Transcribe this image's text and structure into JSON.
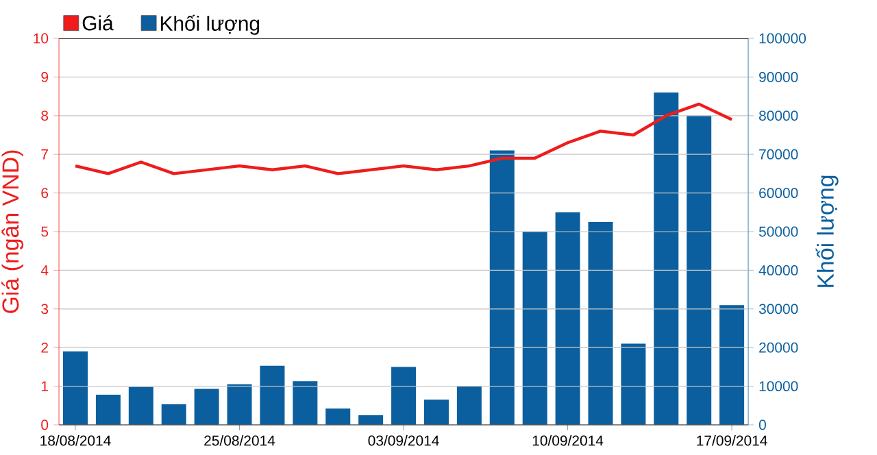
{
  "chart_data": {
    "type": "bar",
    "ylabel": "Giá (ngân VND)",
    "y2label": "Khối lượng",
    "categories": [
      "18/08/2014",
      null,
      null,
      null,
      null,
      "25/08/2014",
      null,
      null,
      null,
      null,
      "03/09/2014",
      null,
      null,
      null,
      null,
      "10/09/2014",
      null,
      null,
      null,
      null,
      "17/09/2014"
    ],
    "series": [
      {
        "name": "Giá",
        "type": "line",
        "color": "#ee1c1c",
        "values": [
          6.7,
          6.5,
          6.8,
          6.5,
          6.6,
          6.7,
          6.6,
          6.7,
          6.5,
          6.6,
          6.7,
          6.6,
          6.7,
          6.9,
          6.9,
          7.3,
          7.6,
          7.5,
          8.0,
          8.3,
          7.9
        ]
      },
      {
        "name": "Khối lượng",
        "axis": "y2",
        "color": "#0b5f9e",
        "values": [
          19000,
          7800,
          9800,
          5300,
          9300,
          10500,
          15300,
          11300,
          4200,
          2500,
          15000,
          6500,
          10000,
          71000,
          50000,
          55000,
          52500,
          21000,
          86000,
          80000,
          31000
        ]
      }
    ],
    "ylim": [
      0,
      10
    ],
    "yticks": [
      0,
      1,
      2,
      3,
      4,
      5,
      6,
      7,
      8,
      9,
      10
    ],
    "y2lim": [
      0,
      100000
    ],
    "y2ticks": [
      0,
      10000,
      20000,
      30000,
      40000,
      50000,
      60000,
      70000,
      80000,
      90000,
      100000
    ],
    "grid": "y",
    "legend": "top left"
  }
}
